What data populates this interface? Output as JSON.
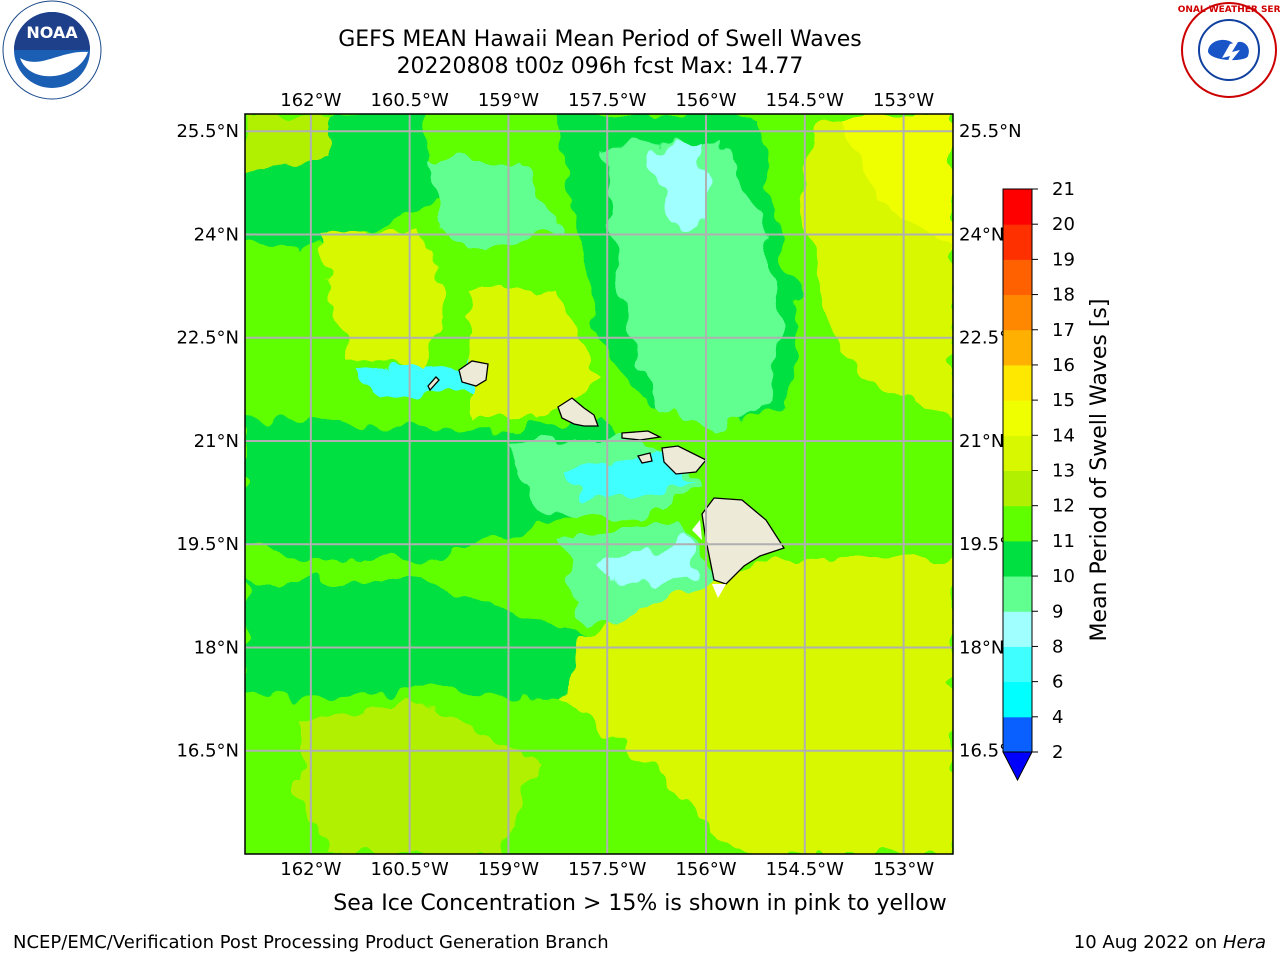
{
  "title": {
    "line1": "GEFS MEAN Hawaii Mean Period of Swell Waves",
    "line2": "20220808 t00z 096h fcst   Max: 14.77"
  },
  "logos": {
    "noaa_text": "NOAA",
    "nws_text": "NATIONAL WEATHER SERVICE"
  },
  "chart_data": {
    "type": "heatmap",
    "variable": "Mean Period of Swell Waves [s]",
    "max": 14.77,
    "lon_ticks": [
      "162°W",
      "160.5°W",
      "159°W",
      "157.5°W",
      "156°W",
      "154.5°W",
      "153°W"
    ],
    "lat_ticks": [
      "25.5°N",
      "24°N",
      "22.5°N",
      "21°N",
      "19.5°N",
      "18°N",
      "16.5°N"
    ],
    "lon_values": [
      -162,
      -160.5,
      -159,
      -157.5,
      -156,
      -154.5,
      -153
    ],
    "lat_values": [
      25.5,
      24,
      22.5,
      21,
      19.5,
      18,
      16.5
    ],
    "extent": {
      "lon_min": -163,
      "lon_max": -152.25,
      "lat_min": 15,
      "lat_max": 25.75
    },
    "grid": true,
    "colorbar": {
      "label": "Mean Period of Swell Waves [s]",
      "levels": [
        2,
        4,
        6,
        8,
        9,
        10,
        11,
        12,
        13,
        14,
        15,
        16,
        17,
        18,
        19,
        20,
        21
      ],
      "colors": [
        "#0a60ff",
        "#00ffff",
        "#40ffff",
        "#a0ffff",
        "#60ff90",
        "#00e040",
        "#60ff00",
        "#b0f000",
        "#d8f800",
        "#f0ff00",
        "#ffe800",
        "#ffb000",
        "#ff8800",
        "#ff6000",
        "#ff3000",
        "#ff0000"
      ],
      "under_color": "#0000ff"
    },
    "regions": [
      {
        "name": "background",
        "value": 11
      },
      {
        "name": "yellow-northeast",
        "value": 13
      },
      {
        "name": "yellow-southeast",
        "value": 13
      },
      {
        "name": "yellow-northwest",
        "value": 12
      },
      {
        "name": "cyan-channel",
        "value": 8
      },
      {
        "name": "cyan-bigisland-lee",
        "value": 8
      }
    ]
  },
  "footer": {
    "note": "Sea Ice Concentration > 15% is shown in pink to yellow",
    "credit": "NCEP/EMC/Verification Post Processing Product Generation Branch",
    "date": "10 Aug 2022 on ",
    "machine": "Hera"
  }
}
